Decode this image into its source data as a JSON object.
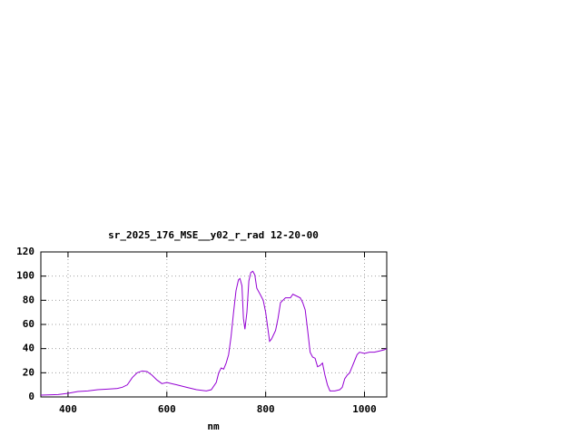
{
  "chart_data": {
    "type": "line",
    "title": "sr_2025_176_MSE__y02_r_rad 12-20-00",
    "xlabel": "nm",
    "x": [
      345,
      380,
      400,
      420,
      440,
      460,
      480,
      500,
      510,
      520,
      530,
      540,
      550,
      560,
      570,
      580,
      590,
      600,
      610,
      620,
      640,
      660,
      680,
      690,
      700,
      705,
      710,
      715,
      720,
      725,
      730,
      735,
      740,
      745,
      748,
      752,
      755,
      758,
      762,
      766,
      770,
      774,
      778,
      782,
      790,
      795,
      800,
      805,
      808,
      812,
      820,
      825,
      830,
      840,
      850,
      855,
      860,
      870,
      875,
      880,
      885,
      890,
      895,
      900,
      905,
      910,
      915,
      920,
      925,
      930,
      940,
      950,
      955,
      960,
      965,
      970,
      975,
      980,
      985,
      990,
      1000,
      1010,
      1020,
      1030,
      1040,
      1045
    ],
    "values": [
      1.5,
      2,
      3,
      4.5,
      5,
      6,
      6.5,
      7,
      8,
      10,
      16,
      20,
      21.5,
      21,
      18,
      14,
      11,
      12,
      11,
      10,
      8,
      6,
      5,
      6,
      12,
      20,
      24,
      23,
      28,
      35,
      50,
      70,
      88,
      97,
      98,
      92,
      65,
      56,
      70,
      96,
      103,
      104,
      101,
      90,
      84,
      80,
      70,
      55,
      46,
      48,
      55,
      65,
      78,
      82,
      82,
      85,
      84,
      82,
      78,
      72,
      55,
      37,
      33,
      32,
      25,
      26,
      28,
      18,
      10,
      5,
      5,
      6,
      8,
      15,
      18,
      20,
      25,
      30,
      35,
      37,
      36,
      37,
      37,
      38,
      39,
      40
    ],
    "color": "#9400d3",
    "xlim": [
      345,
      1045
    ],
    "xticks": [
      400,
      600,
      800,
      1000
    ],
    "ylim": [
      0,
      120
    ],
    "yticks": [
      0,
      20,
      40,
      60,
      80,
      100,
      120
    ],
    "grid": true
  }
}
